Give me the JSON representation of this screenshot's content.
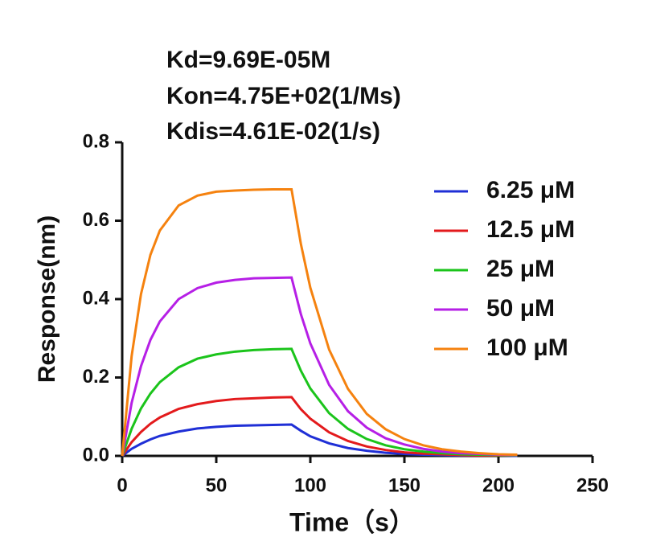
{
  "chart_data": {
    "type": "line",
    "annotations": [
      "Kd=9.69E-05M",
      "Kon=4.75E+02(1/Ms)",
      "Kdis=4.61E-02(1/s)"
    ],
    "xlabel": "Time（s）",
    "ylabel": "Response(nm)",
    "x": [
      0,
      5,
      10,
      15,
      20,
      30,
      40,
      50,
      60,
      70,
      80,
      90,
      95,
      100,
      110,
      120,
      130,
      140,
      150,
      160,
      170,
      180,
      190,
      200,
      210
    ],
    "series": [
      {
        "name": "6.25 μM",
        "color": "#1f2fd6",
        "values": [
          0,
          0.018,
          0.031,
          0.042,
          0.051,
          0.062,
          0.07,
          0.074,
          0.077,
          0.078,
          0.079,
          0.08,
          0.064,
          0.05,
          0.032,
          0.02,
          0.013,
          0.008,
          0.005,
          0.003,
          0.002,
          0.001,
          0.001,
          0.001,
          0
        ]
      },
      {
        "name": "12.5 μM",
        "color": "#e31a1c",
        "values": [
          0,
          0.035,
          0.061,
          0.082,
          0.098,
          0.12,
          0.132,
          0.14,
          0.145,
          0.147,
          0.149,
          0.15,
          0.119,
          0.095,
          0.06,
          0.038,
          0.024,
          0.015,
          0.009,
          0.006,
          0.004,
          0.002,
          0.001,
          0.001,
          0.001
        ]
      },
      {
        "name": "25 μM",
        "color": "#1bc41b",
        "values": [
          0,
          0.069,
          0.121,
          0.159,
          0.188,
          0.226,
          0.248,
          0.259,
          0.266,
          0.27,
          0.272,
          0.273,
          0.217,
          0.172,
          0.109,
          0.069,
          0.043,
          0.027,
          0.017,
          0.011,
          0.007,
          0.004,
          0.003,
          0.002,
          0.001
        ]
      },
      {
        "name": "50 μM",
        "color": "#b61fe6",
        "values": [
          0,
          0.135,
          0.229,
          0.296,
          0.343,
          0.4,
          0.428,
          0.442,
          0.449,
          0.453,
          0.454,
          0.455,
          0.361,
          0.287,
          0.181,
          0.114,
          0.072,
          0.045,
          0.029,
          0.018,
          0.011,
          0.007,
          0.005,
          0.003,
          0.002
        ]
      },
      {
        "name": "100 μM",
        "color": "#f5820f",
        "values": [
          0,
          0.254,
          0.413,
          0.513,
          0.575,
          0.639,
          0.664,
          0.674,
          0.677,
          0.679,
          0.68,
          0.68,
          0.54,
          0.429,
          0.271,
          0.171,
          0.107,
          0.068,
          0.043,
          0.027,
          0.017,
          0.011,
          0.007,
          0.004,
          0.003
        ]
      }
    ],
    "xlim": [
      0,
      250
    ],
    "xticks": [
      0,
      50,
      100,
      150,
      200,
      250
    ],
    "ylim": [
      0,
      0.8
    ],
    "yticks": [
      {
        "value": 0,
        "label": "0.0"
      },
      {
        "value": 0.2,
        "label": "0.2"
      },
      {
        "value": 0.4,
        "label": "0.4"
      },
      {
        "value": 0.6,
        "label": "0.6"
      },
      {
        "value": 0.8,
        "label": "0.8"
      }
    ],
    "legend": "upper right"
  }
}
